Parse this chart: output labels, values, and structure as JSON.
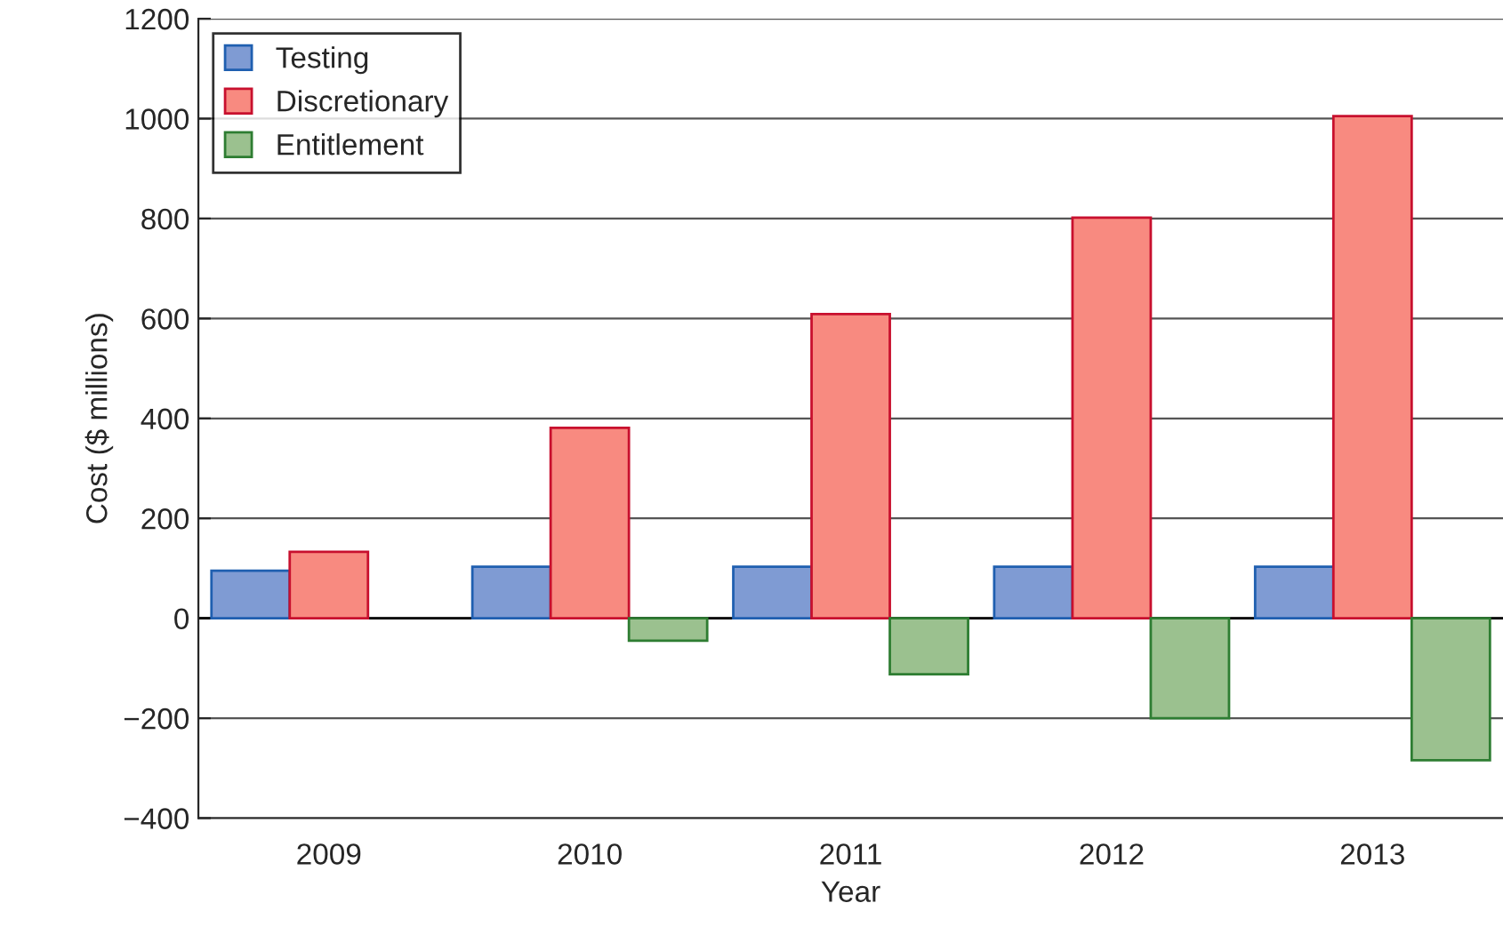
{
  "chart_data": {
    "type": "bar",
    "xlabel": "Year",
    "ylabel": "Cost ($ millions)",
    "categories": [
      "2009",
      "2010",
      "2011",
      "2012",
      "2013"
    ],
    "series": [
      {
        "name": "Testing",
        "color": "#7f9bd3",
        "values": [
          95,
          103,
          103,
          103,
          103
        ]
      },
      {
        "name": "Discretionary",
        "color": "#f88a80",
        "values": [
          133,
          381,
          609,
          802,
          1005
        ]
      },
      {
        "name": "Entitlement",
        "color": "#9bc18f",
        "values": [
          null,
          -45,
          -112,
          -200,
          -284
        ]
      }
    ],
    "ylim": [
      -400,
      1200
    ],
    "yticks": [
      {
        "value": -400,
        "label": "−400"
      },
      {
        "value": -200,
        "label": "−200"
      },
      0,
      200,
      400,
      600,
      800,
      1000,
      1200
    ],
    "grid": "y",
    "legend": "top left"
  }
}
